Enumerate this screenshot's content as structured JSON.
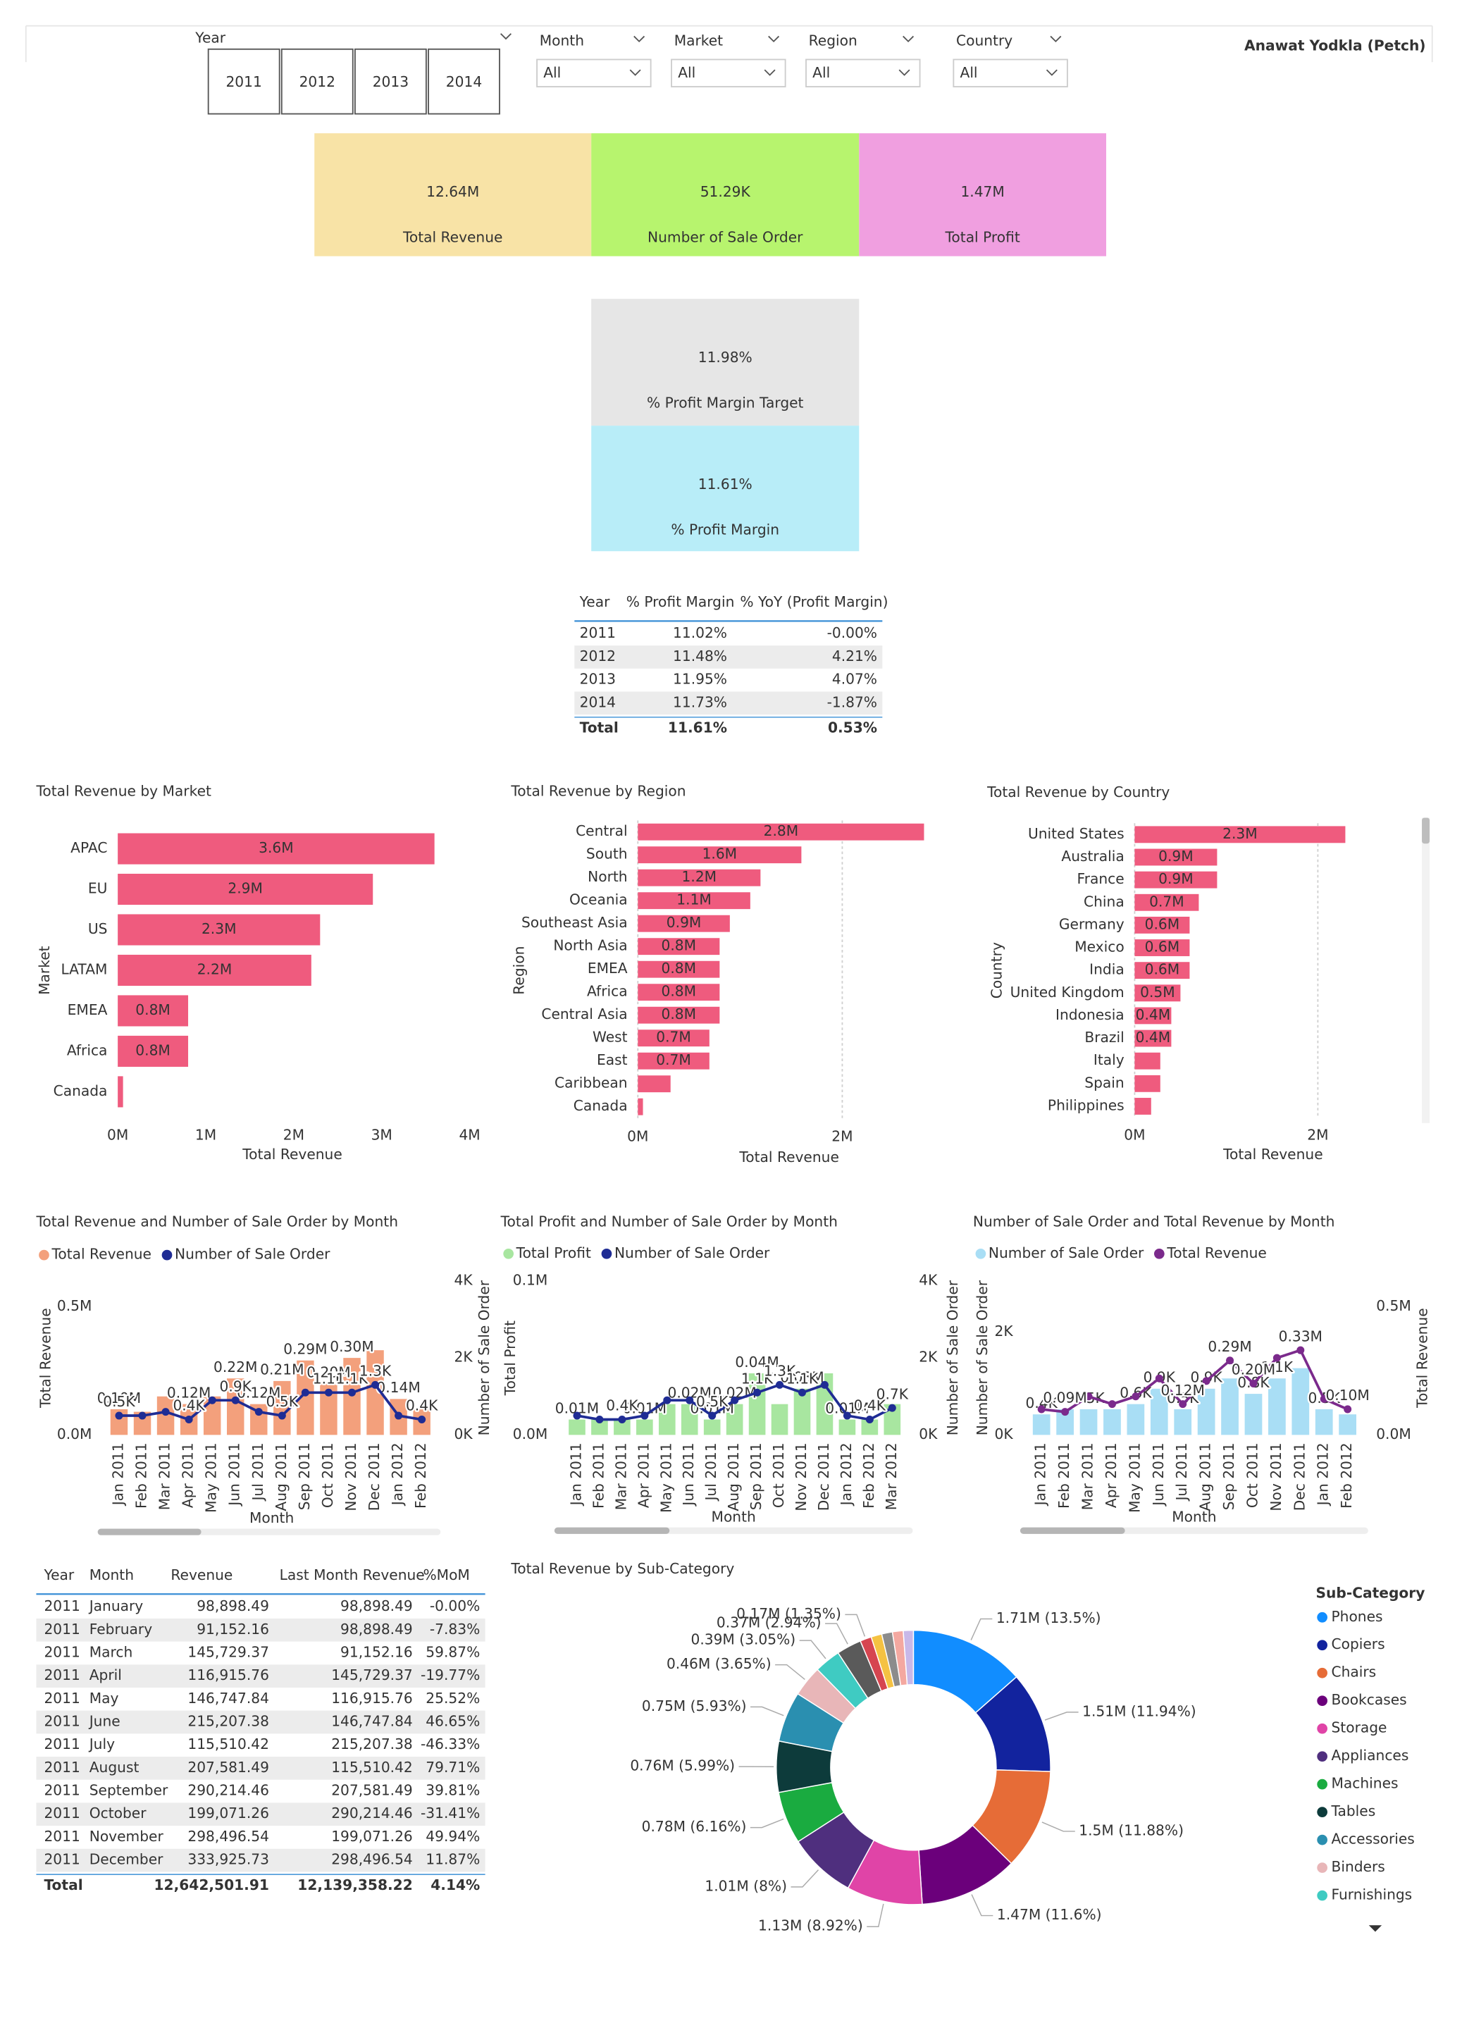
{
  "header": {
    "author": "Anawat Yodkla (Petch)"
  },
  "filters": {
    "year": {
      "label": "Year",
      "options": [
        "2011",
        "2012",
        "2013",
        "2014"
      ]
    },
    "dropdowns": [
      {
        "label": "Month",
        "value": "All"
      },
      {
        "label": "Market",
        "value": "All"
      },
      {
        "label": "Region",
        "value": "All"
      },
      {
        "label": "Country",
        "value": "All"
      }
    ]
  },
  "kpis": [
    {
      "value": "12.64M",
      "label": "Total Revenue"
    },
    {
      "value": "51.29K",
      "label": "Number of Sale Order"
    },
    {
      "value": "1.47M",
      "label": "Total Profit"
    },
    {
      "value": "11.98%",
      "label": "% Profit Margin Target"
    },
    {
      "value": "11.61%",
      "label": "% Profit Margin"
    }
  ],
  "tables": [
    {
      "columns": [
        "Year",
        "% Profit Margin",
        "% YoY (Profit Margin)"
      ],
      "rows": [
        [
          "2011",
          "11.02%",
          "-0.00%"
        ],
        [
          "2012",
          "11.48%",
          "4.21%"
        ],
        [
          "2013",
          "11.95%",
          "4.07%"
        ],
        [
          "2014",
          "11.73%",
          "-1.87%"
        ]
      ],
      "total": [
        "Total",
        "11.61%",
        "0.53%"
      ]
    },
    {
      "columns": [
        "Year",
        "Month",
        "Revenue",
        "Last Month Revenue",
        "%MoM"
      ],
      "rows": [
        [
          "2011",
          "January",
          "98,898.49",
          "98,898.49",
          "-0.00%"
        ],
        [
          "2011",
          "February",
          "91,152.16",
          "98,898.49",
          "-7.83%"
        ],
        [
          "2011",
          "March",
          "145,729.37",
          "91,152.16",
          "59.87%"
        ],
        [
          "2011",
          "April",
          "116,915.76",
          "145,729.37",
          "-19.77%"
        ],
        [
          "2011",
          "May",
          "146,747.84",
          "116,915.76",
          "25.52%"
        ],
        [
          "2011",
          "June",
          "215,207.38",
          "146,747.84",
          "46.65%"
        ],
        [
          "2011",
          "July",
          "115,510.42",
          "215,207.38",
          "-46.33%"
        ],
        [
          "2011",
          "August",
          "207,581.49",
          "115,510.42",
          "79.71%"
        ],
        [
          "2011",
          "September",
          "290,214.46",
          "207,581.49",
          "39.81%"
        ],
        [
          "2011",
          "October",
          "199,071.26",
          "290,214.46",
          "-31.41%"
        ],
        [
          "2011",
          "November",
          "298,496.54",
          "199,071.26",
          "49.94%"
        ],
        [
          "2011",
          "December",
          "333,925.73",
          "298,496.54",
          "11.87%"
        ]
      ],
      "total": [
        "Total",
        "12,642,501.91",
        "12,139,358.22",
        "4.14%"
      ]
    }
  ],
  "chart_data": [
    {
      "type": "bar",
      "title": "Total Revenue by Market",
      "x_label": "Total Revenue",
      "y_label": "Market",
      "categories": [
        "APAC",
        "EU",
        "US",
        "LATAM",
        "EMEA",
        "Africa",
        "Canada"
      ],
      "values": [
        3.6,
        2.9,
        2.3,
        2.2,
        0.8,
        0.8,
        0.06
      ],
      "value_labels": [
        "3.6M",
        "2.9M",
        "2.3M",
        "2.2M",
        "0.8M",
        "0.8M",
        null
      ],
      "color": "#ef5b7e",
      "grid": false,
      "xlim": [
        0,
        4
      ],
      "xticks": [
        {
          "value": 0,
          "label": "0M"
        },
        {
          "value": 1,
          "label": "1M"
        },
        {
          "value": 2,
          "label": "2M"
        },
        {
          "value": 3,
          "label": "3M"
        },
        {
          "value": 4,
          "label": "4M"
        }
      ]
    },
    {
      "type": "bar",
      "title": "Total Revenue by Region",
      "x_label": "Total Revenue",
      "y_label": "Region",
      "categories": [
        "Central",
        "South",
        "North",
        "Oceania",
        "Southeast Asia",
        "North Asia",
        "EMEA",
        "Africa",
        "Central Asia",
        "West",
        "East",
        "Caribbean",
        "Canada"
      ],
      "values": [
        2.8,
        1.6,
        1.2,
        1.1,
        0.9,
        0.8,
        0.8,
        0.8,
        0.8,
        0.7,
        0.7,
        0.32,
        0.05
      ],
      "value_labels": [
        "2.8M",
        "1.6M",
        "1.2M",
        "1.1M",
        "0.9M",
        "0.8M",
        "0.8M",
        "0.8M",
        "0.8M",
        "0.7M",
        "0.7M",
        null,
        null
      ],
      "color": "#ef5b7e",
      "grid": true,
      "xlim": [
        0,
        3
      ],
      "xticks": [
        {
          "value": 0,
          "label": "0M"
        },
        {
          "value": 2,
          "label": "2M"
        }
      ]
    },
    {
      "type": "bar",
      "title": "Total Revenue by Country",
      "x_label": "Total Revenue",
      "y_label": "Country",
      "categories": [
        "United States",
        "Australia",
        "France",
        "China",
        "Germany",
        "Mexico",
        "India",
        "United Kingdom",
        "Indonesia",
        "Brazil",
        "Italy",
        "Spain",
        "Philippines"
      ],
      "values": [
        2.3,
        0.9,
        0.9,
        0.7,
        0.6,
        0.6,
        0.6,
        0.5,
        0.4,
        0.4,
        0.28,
        0.28,
        0.18
      ],
      "value_labels": [
        "2.3M",
        "0.9M",
        "0.9M",
        "0.7M",
        "0.6M",
        "0.6M",
        "0.6M",
        "0.5M",
        "0.4M",
        "0.4M",
        null,
        null,
        null
      ],
      "color": "#ef5b7e",
      "grid": true,
      "xlim": [
        0,
        2.5
      ],
      "xticks": [
        {
          "value": 0,
          "label": "0M"
        },
        {
          "value": 2,
          "label": "2M"
        }
      ]
    },
    {
      "type": "combo",
      "title": "Total Revenue and Number of Sale Order by Month",
      "x_label": "Month",
      "y_label": "Total Revenue",
      "y2_label": "Number of Sale Order",
      "legend": "top",
      "categories": [
        "Jan 2011",
        "Feb 2011",
        "Mar 2011",
        "Apr 2011",
        "May 2011",
        "Jun 2011",
        "Jul 2011",
        "Aug 2011",
        "Sep 2011",
        "Oct 2011",
        "Nov 2011",
        "Dec 2011",
        "Jan 2012",
        "Feb 2012"
      ],
      "series": [
        {
          "name": "Total Revenue",
          "kind": "bar",
          "color": "#f3a07c",
          "values": [
            0.1,
            0.09,
            0.15,
            0.12,
            0.15,
            0.22,
            0.12,
            0.21,
            0.29,
            0.2,
            0.3,
            0.33,
            0.14,
            0.1
          ],
          "value_labels": [
            "0.10M",
            null,
            null,
            "0.12M",
            null,
            "0.22M",
            "0.12M",
            "0.21M",
            "0.29M",
            "0.20M",
            "0.30M",
            null,
            "0.14M",
            null
          ]
        },
        {
          "name": "Number of Sale Order",
          "kind": "line",
          "axis": "y2",
          "color": "#1f2c94",
          "values": [
            0.5,
            0.5,
            0.6,
            0.4,
            0.9,
            0.9,
            0.6,
            0.5,
            1.1,
            1.1,
            1.1,
            1.3,
            0.5,
            0.4
          ],
          "value_labels": [
            "0.5K",
            null,
            null,
            "0.4K",
            null,
            "0.9K",
            null,
            "0.5K",
            null,
            "1.1K",
            "1.1K",
            "1.3K",
            null,
            "0.4K"
          ]
        }
      ],
      "ylim": [
        0,
        0.6
      ],
      "yticks": [
        {
          "value": 0,
          "label": "0.0M"
        },
        {
          "value": 0.5,
          "label": "0.5M"
        }
      ],
      "y2lim": [
        0,
        4
      ],
      "y2ticks": [
        {
          "value": 0,
          "label": "0K"
        },
        {
          "value": 2,
          "label": "2K"
        },
        {
          "value": 4,
          "label": "4K"
        }
      ]
    },
    {
      "type": "combo",
      "title": "Total Profit and Number of Sale Order by Month",
      "x_label": "Month",
      "y_label": "Total Profit",
      "y2_label": "Number of Sale Order",
      "legend": "top",
      "categories": [
        "Jan 2011",
        "Feb 2011",
        "Mar 2011",
        "Apr 2011",
        "May 2011",
        "Jun 2011",
        "Jul 2011",
        "Aug 2011",
        "Sep 2011",
        "Oct 2011",
        "Nov 2011",
        "Dec 2011",
        "Jan 2012",
        "Feb 2012",
        "Mar 2012"
      ],
      "series": [
        {
          "name": "Total Profit",
          "kind": "bar",
          "color": "#a8e6a0",
          "values": [
            0.01,
            0.01,
            0.01,
            0.01,
            0.02,
            0.02,
            0.01,
            0.02,
            0.04,
            0.02,
            0.03,
            0.04,
            0.01,
            0.01,
            0.02
          ],
          "value_labels": [
            "0.01M",
            null,
            null,
            "0.01M",
            null,
            "0.02M",
            "0.01M",
            "0.02M",
            "0.04M",
            null,
            "0.03M",
            null,
            "0.01M",
            null,
            null
          ]
        },
        {
          "name": "Number of Sale Order",
          "kind": "line",
          "axis": "y2",
          "color": "#1f2c94",
          "values": [
            0.5,
            0.4,
            0.4,
            0.5,
            0.9,
            0.9,
            0.5,
            0.9,
            1.1,
            1.3,
            1.1,
            1.3,
            0.5,
            0.4,
            0.7
          ],
          "value_labels": [
            null,
            null,
            "0.4K",
            null,
            null,
            null,
            "0.5K",
            null,
            "1.1K",
            "1.3K",
            "1.1K",
            null,
            null,
            "0.4K",
            "0.7K"
          ]
        }
      ],
      "ylim": [
        0,
        0.1
      ],
      "yticks": [
        {
          "value": 0,
          "label": "0.0M"
        },
        {
          "value": 0.1,
          "label": "0.1M"
        }
      ],
      "y2lim": [
        0,
        4
      ],
      "y2ticks": [
        {
          "value": 0,
          "label": "0K"
        },
        {
          "value": 2,
          "label": "2K"
        },
        {
          "value": 4,
          "label": "4K"
        }
      ]
    },
    {
      "type": "combo",
      "title": "Number of Sale Order and Total Revenue by Month",
      "x_label": "Month",
      "y_label": "Number of Sale Order",
      "y2_label": "Total Revenue",
      "legend": "top",
      "categories": [
        "Jan 2011",
        "Feb 2011",
        "Mar 2011",
        "Apr 2011",
        "May 2011",
        "Jun 2011",
        "Jul 2011",
        "Aug 2011",
        "Sep 2011",
        "Oct 2011",
        "Nov 2011",
        "Dec 2011",
        "Jan 2012",
        "Feb 2012"
      ],
      "series": [
        {
          "name": "Number of Sale Order",
          "kind": "bar",
          "color": "#a9def5",
          "values": [
            0.4,
            0.5,
            0.5,
            0.5,
            0.6,
            0.9,
            0.5,
            0.9,
            1.1,
            0.8,
            1.1,
            1.3,
            0.5,
            0.4
          ],
          "value_labels": [
            "0.4K",
            null,
            "0.5K",
            null,
            "0.6K",
            "0.9K",
            "0.5K",
            "0.9K",
            null,
            "0.8K",
            "1.1K",
            null,
            "0.5K",
            null
          ]
        },
        {
          "name": "Total Revenue",
          "kind": "line",
          "axis": "y2",
          "color": "#7b2a8c",
          "values": [
            0.1,
            0.09,
            0.15,
            0.12,
            0.15,
            0.22,
            0.12,
            0.21,
            0.29,
            0.2,
            0.3,
            0.33,
            0.14,
            0.1
          ],
          "value_labels": [
            null,
            "0.09M",
            null,
            null,
            null,
            null,
            "0.12M",
            null,
            "0.29M",
            "0.20M",
            null,
            "0.33M",
            null,
            "0.10M"
          ]
        }
      ],
      "ylim": [
        0,
        3
      ],
      "yticks": [
        {
          "value": 0,
          "label": "0K"
        },
        {
          "value": 2,
          "label": "2K"
        }
      ],
      "y2lim": [
        0,
        0.6
      ],
      "y2ticks": [
        {
          "value": 0,
          "label": "0.0M"
        },
        {
          "value": 0.5,
          "label": "0.5M"
        }
      ]
    },
    {
      "type": "pie",
      "donut": true,
      "title": "Total Revenue by Sub-Category",
      "legend_title": "Sub-Category",
      "legend": "right",
      "categories": [
        "Phones",
        "Copiers",
        "Chairs",
        "Bookcases",
        "Storage",
        "Appliances",
        "Machines",
        "Tables",
        "Accessories",
        "Binders",
        "Furnishings",
        null,
        null,
        null,
        null,
        null,
        null
      ],
      "values": [
        1.71,
        1.51,
        1.5,
        1.47,
        1.13,
        1.01,
        0.78,
        0.76,
        0.75,
        0.46,
        0.39,
        0.37,
        0.17,
        0.16,
        0.16,
        0.16,
        0.15
      ],
      "value_labels": [
        "1.71M (13.5%)",
        "1.51M (11.94%)",
        "1.5M (11.88%)",
        "1.47M (11.6%)",
        "1.13M (8.92%)",
        "1.01M (8%)",
        "0.78M (6.16%)",
        "0.76M (5.99%)",
        "0.75M (5.93%)",
        "0.46M (3.65%)",
        "0.39M (3.05%)",
        "0.37M (2.94%)",
        "0.17M (1.35%)",
        null,
        null,
        null,
        null
      ],
      "colors": [
        "#118dff",
        "#12239e",
        "#e66c37",
        "#6b007b",
        "#e044a7",
        "#4f2f7e",
        "#1aab40",
        "#0d3b3b",
        "#2a8fb0",
        "#e8b6b8",
        "#3fcbc2",
        "#5a5a5a",
        "#d64550",
        "#f5c242",
        "#8c8c8c",
        "#f4a8a0",
        "#c8b8e8"
      ]
    }
  ]
}
